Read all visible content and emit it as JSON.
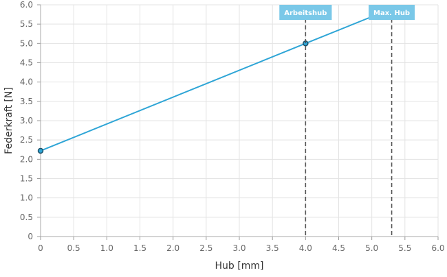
{
  "chart_data": {
    "type": "line",
    "xlabel": "Hub [mm]",
    "ylabel": "Federkraft [N]",
    "xlim": [
      0,
      6
    ],
    "ylim": [
      0,
      6
    ],
    "x_ticks": [
      "0",
      "0.5",
      "1.0",
      "1.5",
      "2.0",
      "2.5",
      "3.0",
      "3.5",
      "4.0",
      "4.5",
      "5.0",
      "5.5",
      "6.0"
    ],
    "y_ticks": [
      "0",
      "0.5",
      "1.0",
      "1.5",
      "2.0",
      "2.5",
      "3.0",
      "3.5",
      "4.0",
      "4.5",
      "5.0",
      "5.5",
      "6.0"
    ],
    "grid": true,
    "series": [
      {
        "color": "#2ea5d6",
        "points": [
          {
            "x": 0,
            "y": 2.22
          },
          {
            "x": 4.0,
            "y": 5.0
          },
          {
            "x": 5.3,
            "y": 5.9
          }
        ]
      }
    ],
    "markers": [
      {
        "x": 4.0,
        "label": "Arbeitshub",
        "color": "#7ac8e8"
      },
      {
        "x": 5.3,
        "label": "Max. Hub",
        "color": "#7ac8e8"
      }
    ]
  }
}
